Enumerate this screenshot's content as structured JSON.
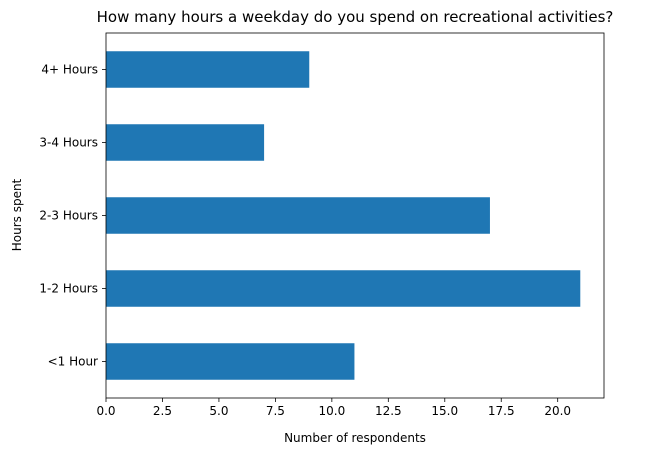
{
  "chart_data": {
    "type": "bar",
    "orientation": "horizontal",
    "title": "How many hours a weekday do you spend on recreational activities?",
    "xlabel": "Number of respondents",
    "ylabel": "Hours spent",
    "categories": [
      "<1 Hour",
      "1-2 Hours",
      "2-3 Hours",
      "3-4 Hours",
      "4+ Hours"
    ],
    "values": [
      11,
      21,
      17,
      7,
      9
    ],
    "xlim": [
      0,
      22.05
    ],
    "xticks": [
      0,
      2.5,
      5,
      7.5,
      10,
      12.5,
      15,
      17.5,
      20
    ],
    "xtick_labels": [
      "0.0",
      "2.5",
      "5.0",
      "7.5",
      "10.0",
      "12.5",
      "15.0",
      "17.5",
      "20.0"
    ],
    "bar_color": "#1f77b4",
    "grid": false,
    "legend": "none"
  }
}
